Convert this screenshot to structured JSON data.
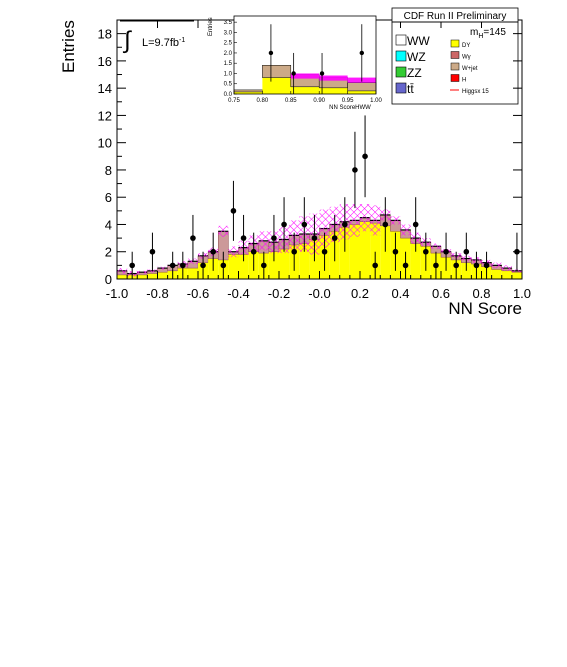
{
  "chart_data": {
    "type": "bar",
    "header": "CDF Run II Preliminary",
    "mass_label": "m",
    "mass_sub": "H",
    "mass_value": "=145",
    "lumi_symbol": "∫",
    "lumi_label": "L=9.7fb",
    "lumi_exp": "-1",
    "xlabel": "NN Score",
    "ylabel": "Entries",
    "xlim": [
      -1.0,
      1.0
    ],
    "ylim": [
      0,
      19
    ],
    "xticks": [
      "-1.0",
      "-0.8",
      "-0.6",
      "-0.4",
      "-0.2",
      "-0.0",
      "0.2",
      "0.4",
      "0.6",
      "0.8",
      "1.0"
    ],
    "yticks": [
      "0",
      "2",
      "4",
      "6",
      "8",
      "10",
      "12",
      "14",
      "16",
      "18"
    ],
    "bin_edges_start": -1.0,
    "bin_width": 0.05,
    "stack_bottom_dy": [
      0.3,
      0.3,
      0.3,
      0.4,
      0.5,
      0.6,
      0.8,
      0.8,
      1.2,
      1.5,
      1.4,
      1.8,
      1.8,
      2.0,
      1.9,
      2.0,
      2.2,
      2.5,
      2.6,
      2.9,
      3.2,
      3.5,
      3.8,
      4.0,
      4.2,
      4.1,
      3.9,
      3.5,
      3.0,
      2.6,
      2.4,
      1.9,
      1.6,
      1.4,
      1.2,
      1.1,
      0.9,
      0.7,
      0.6,
      0.5
    ],
    "stack_total": [
      0.6,
      0.4,
      0.5,
      0.6,
      0.8,
      1.0,
      1.1,
      1.3,
      1.7,
      2.0,
      3.5,
      2.0,
      2.3,
      2.6,
      2.8,
      2.7,
      2.9,
      3.2,
      3.3,
      3.3,
      3.7,
      4.0,
      4.2,
      4.3,
      4.5,
      4.3,
      4.7,
      4.3,
      3.6,
      3.0,
      2.7,
      2.4,
      2.0,
      1.7,
      1.5,
      1.4,
      1.2,
      1.0,
      0.8,
      0.6
    ],
    "band_upper": [
      0.8,
      0.6,
      0.6,
      0.7,
      0.9,
      1.1,
      1.3,
      1.5,
      1.9,
      2.3,
      3.9,
      2.4,
      2.8,
      3.2,
      3.5,
      3.5,
      3.9,
      4.3,
      4.6,
      4.8,
      5.1,
      5.3,
      5.5,
      5.5,
      5.5,
      5.4,
      5.1,
      4.6,
      4.0,
      3.4,
      3.0,
      2.6,
      2.2,
      1.9,
      1.7,
      1.6,
      1.4,
      1.2,
      1.0,
      0.7
    ],
    "data_points": [
      {
        "x": -0.925,
        "y": 1,
        "err": 1.0
      },
      {
        "x": -0.825,
        "y": 2,
        "err": 1.4
      },
      {
        "x": -0.725,
        "y": 1,
        "err": 1.0
      },
      {
        "x": -0.675,
        "y": 1,
        "err": 1.0
      },
      {
        "x": -0.625,
        "y": 3,
        "err": 1.7
      },
      {
        "x": -0.575,
        "y": 1,
        "err": 1.0
      },
      {
        "x": -0.525,
        "y": 2,
        "err": 1.4
      },
      {
        "x": -0.475,
        "y": 1,
        "err": 1.0
      },
      {
        "x": -0.425,
        "y": 5,
        "err": 2.2
      },
      {
        "x": -0.375,
        "y": 3,
        "err": 1.7
      },
      {
        "x": -0.325,
        "y": 2,
        "err": 1.4
      },
      {
        "x": -0.275,
        "y": 1,
        "err": 1.0
      },
      {
        "x": -0.225,
        "y": 3,
        "err": 1.7
      },
      {
        "x": -0.175,
        "y": 4,
        "err": 2.0
      },
      {
        "x": -0.125,
        "y": 2,
        "err": 1.4
      },
      {
        "x": -0.075,
        "y": 4,
        "err": 2.0
      },
      {
        "x": -0.025,
        "y": 3,
        "err": 1.7
      },
      {
        "x": 0.025,
        "y": 2,
        "err": 1.4
      },
      {
        "x": 0.075,
        "y": 3,
        "err": 1.7
      },
      {
        "x": 0.125,
        "y": 4,
        "err": 2.0
      },
      {
        "x": 0.175,
        "y": 8,
        "err": 2.8
      },
      {
        "x": 0.225,
        "y": 9,
        "err": 3.0
      },
      {
        "x": 0.275,
        "y": 1,
        "err": 1.0
      },
      {
        "x": 0.325,
        "y": 4,
        "err": 2.0
      },
      {
        "x": 0.375,
        "y": 2,
        "err": 1.4
      },
      {
        "x": 0.425,
        "y": 1,
        "err": 1.0
      },
      {
        "x": 0.475,
        "y": 4,
        "err": 2.0
      },
      {
        "x": 0.525,
        "y": 2,
        "err": 1.4
      },
      {
        "x": 0.575,
        "y": 1,
        "err": 1.0
      },
      {
        "x": 0.625,
        "y": 2,
        "err": 1.4
      },
      {
        "x": 0.675,
        "y": 1,
        "err": 1.0
      },
      {
        "x": 0.725,
        "y": 2,
        "err": 1.4
      },
      {
        "x": 0.775,
        "y": 1,
        "err": 1.0
      },
      {
        "x": 0.825,
        "y": 1,
        "err": 1.0
      },
      {
        "x": 0.975,
        "y": 2,
        "err": 1.4
      }
    ],
    "legend": [
      {
        "label": "WW",
        "color": "#ffffff",
        "size": "large"
      },
      {
        "label": "WZ",
        "color": "#00ffff",
        "size": "large"
      },
      {
        "label": "ZZ",
        "color": "#33cc33",
        "size": "large"
      },
      {
        "label": "tt̄",
        "color": "#6666cc",
        "size": "large"
      },
      {
        "label": "DY",
        "color": "#ffff00",
        "size": "small"
      },
      {
        "label": "Wγ",
        "color": "#cc6666",
        "size": "small"
      },
      {
        "label": "W+jet",
        "color": "#ccaa88",
        "size": "small"
      },
      {
        "label": "H",
        "color": "#ff0000",
        "size": "small"
      },
      {
        "label": "Higgsx 15",
        "color": "#ff0000",
        "size": "small",
        "line": true
      }
    ],
    "inset": {
      "xlabel": "NN ScoreHWW",
      "ylabel": "Entries",
      "xlim": [
        0.75,
        1.0
      ],
      "ylim": [
        0,
        3.8
      ],
      "xticks": [
        "0.75",
        "0.80",
        "0.85",
        "0.90",
        "0.95",
        "1.00"
      ],
      "yticks": [
        "0.0",
        "0.5",
        "1.0",
        "1.5",
        "2.0",
        "2.5",
        "3.0",
        "3.5"
      ],
      "bin_edges_start": 0.75,
      "bin_width": 0.05,
      "stack_bottom": [
        0.1,
        0.8,
        0.35,
        0.3,
        0.15
      ],
      "stack_total": [
        0.2,
        1.4,
        0.95,
        0.8,
        0.55
      ],
      "signal_band": [
        null,
        null,
        [
          0.75,
          1.0
        ],
        [
          0.65,
          0.9
        ],
        [
          0.55,
          0.8
        ]
      ],
      "data_points": [
        {
          "x": 0.815,
          "y": 2,
          "err": 1.4
        },
        {
          "x": 0.855,
          "y": 1,
          "err": 1.0
        },
        {
          "x": 0.905,
          "y": 1,
          "err": 1.0
        },
        {
          "x": 0.975,
          "y": 2,
          "err": 1.4
        }
      ]
    }
  }
}
